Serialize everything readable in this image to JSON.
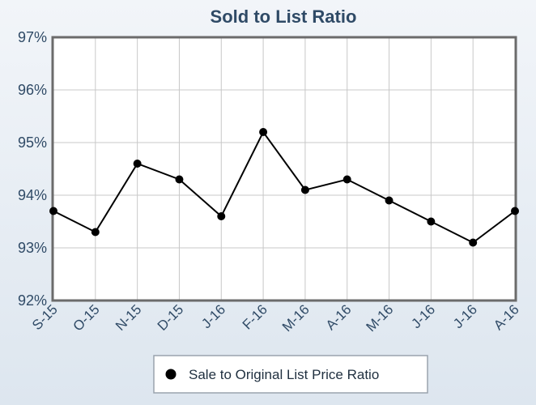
{
  "chart_data": {
    "type": "line",
    "title": "Sold to List Ratio",
    "xlabel": "",
    "ylabel": "",
    "categories": [
      "S-15",
      "O-15",
      "N-15",
      "D-15",
      "J-16",
      "F-16",
      "M-16",
      "A-16",
      "M-16",
      "J-16",
      "J-16",
      "A-16"
    ],
    "series": [
      {
        "name": "Sale to Original List Price Ratio",
        "values": [
          93.7,
          93.3,
          94.6,
          94.3,
          93.6,
          95.2,
          94.1,
          94.3,
          93.9,
          93.5,
          93.1,
          93.7
        ]
      }
    ],
    "ylim": [
      92,
      97
    ],
    "yticks": [
      92,
      93,
      94,
      95,
      96,
      97
    ],
    "ytick_labels": [
      "92%",
      "93%",
      "94%",
      "95%",
      "96%",
      "97%"
    ],
    "grid": true,
    "legend_position": "bottom-center",
    "colors": {
      "line": "#000000",
      "marker": "#000000",
      "grid": "#c8c8c8",
      "frame": "#6b6b6b",
      "text": "#2f4a66"
    }
  }
}
